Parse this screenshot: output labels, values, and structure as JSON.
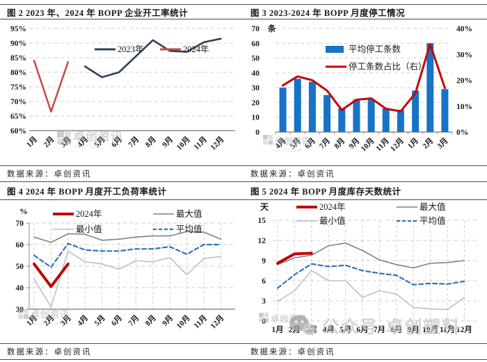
{
  "page": {
    "source_label": "数据来源：卓创资讯",
    "watermark": {
      "brand": "卓创资讯",
      "brand_sub": "SCI99.COM",
      "social": "公众号·卓创塑料"
    },
    "colors": {
      "rule": "#4a4a4a",
      "grid": "#cfcfcf",
      "axis": "#9c9c9c"
    }
  },
  "chart_data": [
    {
      "id": "fig2",
      "type": "line",
      "title": "图 2 2023 年、2024 年 BOPP 企业开工率统计",
      "categories": [
        "1月",
        "2月",
        "3月",
        "4月",
        "5月",
        "6月",
        "7月",
        "8月",
        "9月",
        "10月",
        "11月",
        "12月"
      ],
      "ylim": [
        60,
        95
      ],
      "ystep": 5,
      "yfmt": "%",
      "grid": "horizontal-dashed",
      "legend_position": "top-center-inside",
      "series": [
        {
          "name": "2023年",
          "color": "#2c4257",
          "width": 2.6,
          "dash": false,
          "values": [
            null,
            null,
            null,
            82,
            78.3,
            80,
            85.5,
            91,
            87.3,
            87,
            90.3,
            91.5
          ]
        },
        {
          "name": "2024年",
          "color": "#c0504d",
          "width": 2.6,
          "dash": false,
          "values": [
            84,
            66.5,
            83.5,
            null,
            null,
            null,
            null,
            null,
            null,
            null,
            null,
            null
          ]
        }
      ]
    },
    {
      "id": "fig3",
      "type": "bar-line-combo",
      "title": "图 3 2023-2024 年 BOPP 月度停工情况",
      "categories": [
        "4月",
        "5月",
        "6月",
        "7月",
        "8月",
        "9月",
        "10月",
        "11月",
        "12月",
        "1月",
        "2月",
        "3月"
      ],
      "left_axis": {
        "unit": "条",
        "lim": [
          0,
          70
        ],
        "step": 10
      },
      "right_axis": {
        "lim": [
          0,
          40
        ],
        "step": 10,
        "fmt": "%"
      },
      "grid": "horizontal-dashed",
      "legend_position": "top-center-inside",
      "bars": {
        "name": "平均停工条数",
        "color": "#1673c6",
        "values": [
          30,
          36,
          34,
          25,
          16,
          22,
          22,
          16,
          15,
          28,
          60,
          29
        ]
      },
      "line": {
        "name": "停工条数占比（右）",
        "color": "#c80000",
        "width": 3,
        "values": [
          18,
          21.5,
          20,
          16,
          8.5,
          12.5,
          13,
          9,
          8,
          15,
          34,
          17
        ]
      }
    },
    {
      "id": "fig4",
      "type": "line",
      "title": "图 4 2024 年 BOPP 月度开工负荷率统计",
      "unit": "%",
      "categories": [
        "1月",
        "2月",
        "3月",
        "4月",
        "5月",
        "6月",
        "7月",
        "8月",
        "9月",
        "10月",
        "11月",
        "12月"
      ],
      "ylim": [
        30,
        70
      ],
      "ystep": 10,
      "grid": "horizontal-and-vertical-dashed",
      "legend_position": "top-two-rows-inside",
      "series": [
        {
          "name": "2024年",
          "color": "#c00000",
          "width": 4,
          "dash": false,
          "values": [
            51,
            40.5,
            51,
            null,
            null,
            null,
            null,
            null,
            null,
            null,
            null,
            null
          ]
        },
        {
          "name": "最大值",
          "color": "#808080",
          "width": 1.6,
          "dash": false,
          "values": [
            63.5,
            61,
            65,
            64.8,
            62,
            62.5,
            63.5,
            64,
            64,
            66,
            65.8,
            62.5
          ]
        },
        {
          "name": "最小值",
          "color": "#bfbfbf",
          "width": 1.6,
          "dash": false,
          "values": [
            44,
            31,
            57,
            52,
            51,
            48.5,
            52.5,
            52,
            54,
            46,
            53.5,
            54.5
          ]
        },
        {
          "name": "平均值",
          "color": "#2e75b6",
          "width": 2.2,
          "dash": true,
          "values": [
            55,
            49.5,
            60.5,
            57.5,
            57,
            57,
            58,
            58,
            59,
            55.5,
            60,
            60
          ]
        }
      ]
    },
    {
      "id": "fig5",
      "type": "line",
      "title": "图 5 2024 年 BOPP 月度库存天数统计",
      "unit": "天",
      "categories": [
        "1月",
        "2月",
        "3月",
        "4月",
        "5月",
        "6月",
        "7月",
        "8月",
        "9月",
        "10月",
        "11月",
        "12月"
      ],
      "ylim": [
        0,
        15
      ],
      "ystep": 3,
      "grid": "horizontal-and-vertical-dashed",
      "legend_position": "top-two-rows-inside",
      "series": [
        {
          "name": "2024年",
          "color": "#c00000",
          "width": 4,
          "dash": false,
          "values": [
            8.6,
            10,
            10.1,
            null,
            null,
            null,
            null,
            null,
            null,
            null,
            null,
            null
          ]
        },
        {
          "name": "最大值",
          "color": "#808080",
          "width": 1.6,
          "dash": false,
          "values": [
            8.4,
            9.4,
            9.8,
            11.2,
            11.6,
            10.5,
            9.1,
            8.4,
            7.9,
            8.6,
            8.7,
            9
          ]
        },
        {
          "name": "最小值",
          "color": "#bfbfbf",
          "width": 1.6,
          "dash": false,
          "values": [
            2.9,
            4.5,
            7.5,
            6,
            6,
            3.5,
            4.5,
            4,
            2,
            1.8,
            1.7,
            3.5
          ]
        },
        {
          "name": "平均值",
          "color": "#2e75b6",
          "width": 2.2,
          "dash": true,
          "values": [
            4.9,
            6.9,
            8.5,
            8.1,
            8.3,
            7.5,
            7.1,
            6.8,
            5.4,
            5.6,
            5.5,
            5.9
          ]
        }
      ]
    }
  ]
}
